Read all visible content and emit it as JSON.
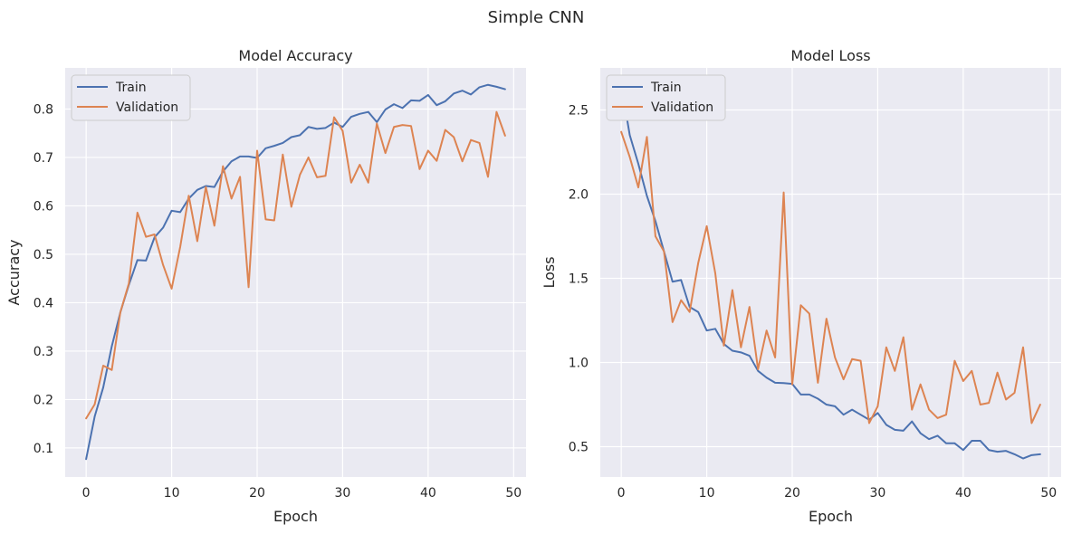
{
  "figure": {
    "title": "Simple CNN"
  },
  "colors": {
    "train": "#4c72b0",
    "validation": "#dd8452",
    "background": "#eaeaf2",
    "grid": "#ffffff"
  },
  "chart_data": [
    {
      "type": "line",
      "title": "Model Accuracy",
      "xlabel": "Epoch",
      "ylabel": "Accuracy",
      "xlim": [
        -2.45,
        51.45
      ],
      "ylim": [
        0.04,
        0.885
      ],
      "xticks": [
        0,
        10,
        20,
        30,
        40,
        50
      ],
      "yticks": [
        0.1,
        0.2,
        0.3,
        0.4,
        0.5,
        0.6,
        0.7,
        0.8
      ],
      "ytick_labels": [
        "0.1",
        "0.2",
        "0.3",
        "0.4",
        "0.5",
        "0.6",
        "0.7",
        "0.8"
      ],
      "legend_position": "upper-left",
      "grid": true,
      "series": [
        {
          "name": "Train",
          "color": "#4c72b0",
          "values": [
            0.077,
            0.165,
            0.225,
            0.31,
            0.38,
            0.437,
            0.488,
            0.487,
            0.535,
            0.555,
            0.59,
            0.587,
            0.615,
            0.633,
            0.641,
            0.639,
            0.671,
            0.692,
            0.702,
            0.702,
            0.699,
            0.719,
            0.724,
            0.73,
            0.742,
            0.746,
            0.763,
            0.759,
            0.761,
            0.772,
            0.763,
            0.784,
            0.79,
            0.794,
            0.773,
            0.799,
            0.81,
            0.802,
            0.818,
            0.817,
            0.829,
            0.808,
            0.816,
            0.832,
            0.838,
            0.83,
            0.845,
            0.85,
            0.846,
            0.841
          ]
        },
        {
          "name": "Validation",
          "color": "#dd8452",
          "values": [
            0.161,
            0.19,
            0.27,
            0.261,
            0.38,
            0.44,
            0.586,
            0.536,
            0.541,
            0.478,
            0.429,
            0.515,
            0.621,
            0.527,
            0.639,
            0.559,
            0.682,
            0.615,
            0.66,
            0.432,
            0.714,
            0.572,
            0.57,
            0.706,
            0.598,
            0.664,
            0.7,
            0.659,
            0.662,
            0.783,
            0.755,
            0.648,
            0.685,
            0.648,
            0.77,
            0.709,
            0.763,
            0.767,
            0.765,
            0.676,
            0.714,
            0.693,
            0.757,
            0.742,
            0.692,
            0.736,
            0.73,
            0.66,
            0.794,
            0.745
          ]
        }
      ]
    },
    {
      "type": "line",
      "title": "Model Loss",
      "xlabel": "Epoch",
      "ylabel": "Loss",
      "xlim": [
        -2.45,
        51.45
      ],
      "ylim": [
        0.32,
        2.75
      ],
      "xticks": [
        0,
        10,
        20,
        30,
        40,
        50
      ],
      "yticks": [
        0.5,
        1.0,
        1.5,
        2.0,
        2.5
      ],
      "ytick_labels": [
        "0.5",
        "1.0",
        "1.5",
        "2.0",
        "2.5"
      ],
      "legend_position": "upper-left",
      "grid": true,
      "series": [
        {
          "name": "Train",
          "color": "#4c72b0",
          "values": [
            2.65,
            2.35,
            2.18,
            1.99,
            1.84,
            1.66,
            1.48,
            1.49,
            1.33,
            1.3,
            1.19,
            1.2,
            1.11,
            1.07,
            1.06,
            1.04,
            0.95,
            0.91,
            0.88,
            0.878,
            0.873,
            0.81,
            0.81,
            0.785,
            0.75,
            0.74,
            0.69,
            0.72,
            0.69,
            0.66,
            0.7,
            0.63,
            0.6,
            0.595,
            0.65,
            0.58,
            0.545,
            0.565,
            0.52,
            0.52,
            0.48,
            0.535,
            0.535,
            0.48,
            0.47,
            0.475,
            0.455,
            0.43,
            0.45,
            0.455
          ]
        },
        {
          "name": "Validation",
          "color": "#dd8452",
          "values": [
            2.37,
            2.22,
            2.04,
            2.34,
            1.75,
            1.66,
            1.24,
            1.37,
            1.3,
            1.59,
            1.81,
            1.53,
            1.1,
            1.43,
            1.09,
            1.33,
            0.96,
            1.19,
            1.03,
            2.01,
            0.87,
            1.34,
            1.29,
            0.88,
            1.26,
            1.03,
            0.9,
            1.02,
            1.01,
            0.64,
            0.74,
            1.09,
            0.95,
            1.15,
            0.72,
            0.87,
            0.72,
            0.67,
            0.69,
            1.01,
            0.89,
            0.95,
            0.75,
            0.76,
            0.94,
            0.78,
            0.82,
            1.09,
            0.64,
            0.75
          ]
        }
      ]
    }
  ]
}
